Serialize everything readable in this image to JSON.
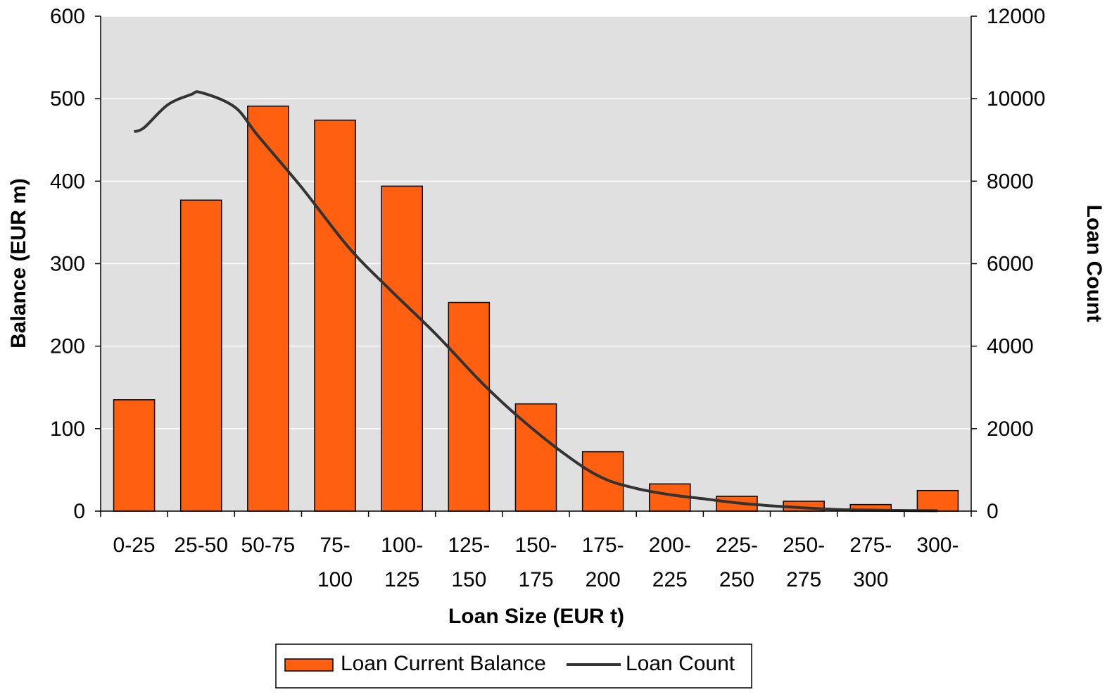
{
  "chart_data": {
    "type": "bar",
    "xlabel": "Loan Size (EUR t)",
    "ylabel": "Balance (EUR m)",
    "y2label": "Loan Count",
    "ylim": [
      0,
      600
    ],
    "y2lim": [
      0,
      12000
    ],
    "yticks": [
      "0",
      "100",
      "200",
      "300",
      "400",
      "500",
      "600"
    ],
    "y2ticks": [
      "0",
      "2000",
      "4000",
      "6000",
      "8000",
      "10000",
      "12000"
    ],
    "categories": [
      [
        "0-25"
      ],
      [
        "25-50"
      ],
      [
        "50-75"
      ],
      [
        "75-",
        "100"
      ],
      [
        "100-",
        "125"
      ],
      [
        "125-",
        "150"
      ],
      [
        "150-",
        "175"
      ],
      [
        "175-",
        "200"
      ],
      [
        "200-",
        "225"
      ],
      [
        "225-",
        "250"
      ],
      [
        "250-",
        "275"
      ],
      [
        "275-",
        "300"
      ],
      [
        "300-"
      ]
    ],
    "series": [
      {
        "name": "Loan Current Balance",
        "kind": "bar",
        "axis": "left",
        "color": "#ff6010",
        "values": [
          135,
          377,
          491,
          474,
          394,
          253,
          130,
          72,
          33,
          18,
          12,
          8,
          25
        ]
      },
      {
        "name": "Loan Count",
        "kind": "line",
        "axis": "right",
        "color": "#333333",
        "x": [
          0,
          0.15,
          0.5,
          0.85,
          1.0,
          1.5,
          1.85,
          2.5,
          3.2,
          3.8,
          4.5,
          5.2,
          5.8,
          6.5,
          7.0,
          7.5,
          8.0,
          8.5,
          9.0,
          9.5,
          10.0,
          10.5,
          11.0,
          11.5,
          12.0
        ],
        "values": [
          9200,
          9300,
          9850,
          10100,
          10150,
          9800,
          9100,
          7850,
          6400,
          5400,
          4300,
          3100,
          2200,
          1300,
          800,
          550,
          400,
          300,
          200,
          130,
          80,
          40,
          25,
          15,
          10
        ]
      }
    ],
    "plot_background": "#e0e0e0",
    "grid": true,
    "legend_position": "bottom"
  }
}
